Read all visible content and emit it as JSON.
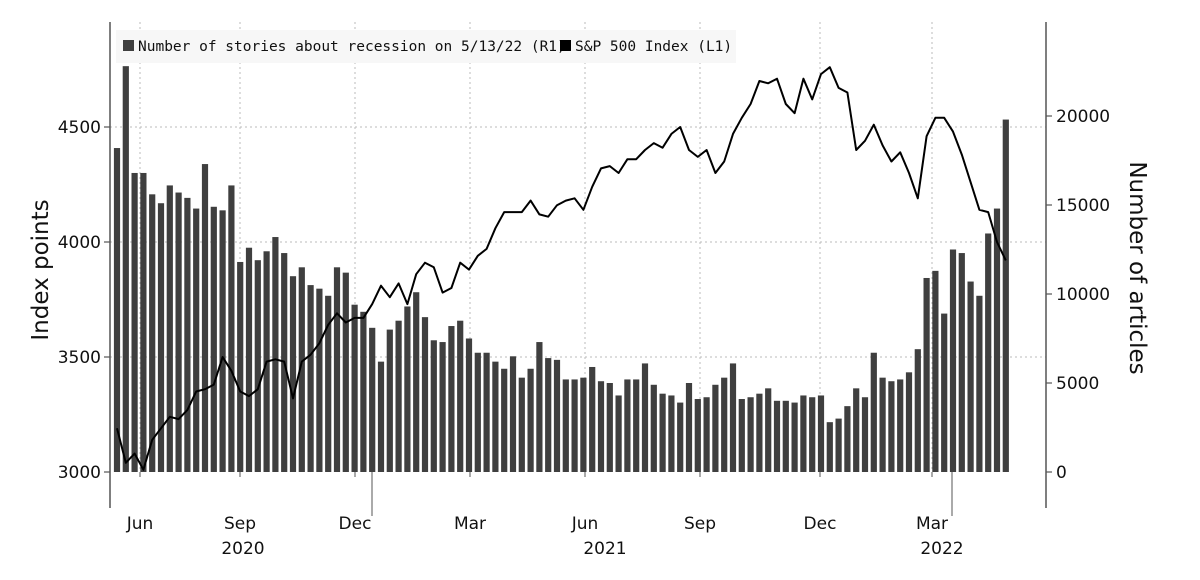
{
  "colors": {
    "bar": "#3f3f3f",
    "line": "#000000",
    "axis": "#555555",
    "grid": "#bbbbbb",
    "legend_bg": "#f7f7f7"
  },
  "axes": {
    "left_title": "Index points",
    "right_title": "Number of articles",
    "left_ticks": [
      "3000",
      "3500",
      "4000",
      "4500"
    ],
    "right_ticks": [
      "0",
      "5000",
      "10000",
      "15000",
      "20000"
    ],
    "month_ticks": [
      "Jun",
      "Sep",
      "Dec",
      "Mar",
      "Jun",
      "Sep",
      "Dec",
      "Mar"
    ],
    "year_labels": [
      "2020",
      "2021",
      "2022"
    ]
  },
  "legend": {
    "bars": "Number of stories about recession on 5/13/22 (R1)",
    "line": "S&P 500 Index (L1)"
  },
  "chart_data": {
    "type": "bar",
    "x_type": "weekly dates",
    "x_range": [
      "2020-05-15",
      "2022-05-13"
    ],
    "grid": true,
    "legend_position": "top-left",
    "left_axis": {
      "label": "Index points",
      "ylim": [
        3000,
        4800
      ],
      "ticks": [
        3000,
        3500,
        4000,
        4500
      ]
    },
    "right_axis": {
      "label": "Number of articles",
      "ylim": [
        0,
        25000
      ],
      "ticks": [
        0,
        5000,
        10000,
        15000,
        20000
      ]
    },
    "series": [
      {
        "name": "Number of stories about recession on 5/13/22 (R1)",
        "type": "bar",
        "axis": "right",
        "values": [
          18200,
          22800,
          16800,
          16800,
          15600,
          15100,
          16100,
          15700,
          15400,
          14800,
          17300,
          14900,
          14700,
          16100,
          11800,
          12600,
          11900,
          12400,
          13200,
          12300,
          11000,
          11500,
          10500,
          10300,
          9900,
          11500,
          11200,
          9400,
          9000,
          8100,
          6200,
          8000,
          8500,
          9300,
          10100,
          8700,
          7400,
          7300,
          8200,
          8500,
          7500,
          6700,
          6700,
          6200,
          5800,
          6500,
          5300,
          5800,
          7300,
          6400,
          6300,
          5200,
          5200,
          5300,
          5900,
          5100,
          5000,
          4300,
          5200,
          5200,
          6100,
          4900,
          4400,
          4300,
          3900,
          5000,
          4100,
          4200,
          4900,
          5300,
          6100,
          4100,
          4200,
          4400,
          4700,
          4000,
          4000,
          3900,
          4300,
          4200,
          4300,
          2800,
          3000,
          3700,
          4700,
          4200,
          6700,
          5300,
          5100,
          5200,
          5600,
          6900,
          10900,
          11300,
          8900,
          12500,
          12300,
          10700,
          9900,
          13400,
          14800,
          19800
        ]
      },
      {
        "name": "S&P 500 Index (L1)",
        "type": "line",
        "axis": "left",
        "values": [
          3190,
          3040,
          3080,
          3010,
          3140,
          3190,
          3240,
          3230,
          3270,
          3350,
          3360,
          3380,
          3500,
          3440,
          3350,
          3330,
          3360,
          3480,
          3490,
          3480,
          3320,
          3480,
          3510,
          3560,
          3640,
          3690,
          3650,
          3670,
          3670,
          3730,
          3810,
          3760,
          3820,
          3730,
          3860,
          3910,
          3890,
          3780,
          3800,
          3910,
          3880,
          3940,
          3970,
          4060,
          4130,
          4130,
          4130,
          4180,
          4120,
          4110,
          4160,
          4180,
          4190,
          4140,
          4240,
          4320,
          4330,
          4300,
          4360,
          4360,
          4400,
          4430,
          4410,
          4470,
          4500,
          4400,
          4370,
          4400,
          4300,
          4350,
          4470,
          4540,
          4600,
          4700,
          4690,
          4710,
          4600,
          4560,
          4710,
          4620,
          4730,
          4760,
          4670,
          4650,
          4400,
          4440,
          4510,
          4420,
          4350,
          4390,
          4300,
          4190,
          4460,
          4540,
          4540,
          4480,
          4380,
          4260,
          4140,
          4130,
          4000,
          3920
        ]
      }
    ]
  }
}
